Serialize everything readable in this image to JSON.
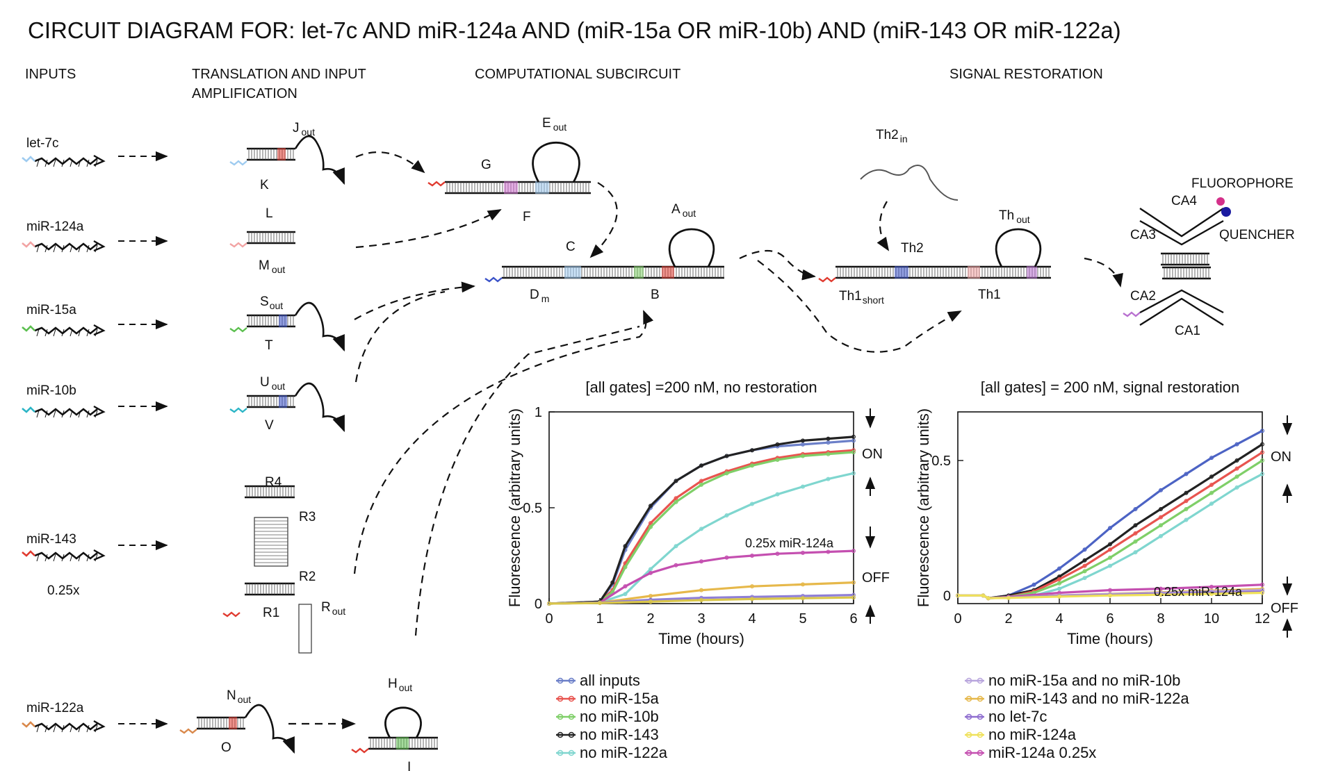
{
  "title": "CIRCUIT DIAGRAM FOR: let-7c AND miR-124a AND (miR-15a OR miR-10b) AND (miR-143 OR miR-122a)",
  "sections": {
    "inputs": "INPUTS",
    "translation_line1": "TRANSLATION AND INPUT",
    "translation_line2": "AMPLIFICATION",
    "computational": "COMPUTATIONAL SUBCIRCUIT",
    "restoration": "SIGNAL RESTORATION"
  },
  "inputs": [
    {
      "name": "let-7c",
      "color": "#9ecbf0"
    },
    {
      "name": "miR-124a",
      "color": "#f2a3a3"
    },
    {
      "name": "miR-15a",
      "color": "#5cbf4f"
    },
    {
      "name": "miR-10b",
      "color": "#2cb5c6"
    },
    {
      "name": "miR-143",
      "color": "#e03a2f"
    },
    {
      "name": "miR-122a",
      "color": "#d9884a"
    }
  ],
  "input_note": "0.25x",
  "input_note_color": "#e02020",
  "gates": {
    "J": "J",
    "J_sub": "out",
    "K": "K",
    "L": "L",
    "M": "M",
    "M_sub": "out",
    "S": "S",
    "S_sub": "out",
    "T": "T",
    "U": "U",
    "U_sub": "out",
    "V": "V",
    "R4": "R4",
    "R3": "R3",
    "R2": "R2",
    "R1": "R1",
    "R": "R",
    "R_sub": "out",
    "N": "N",
    "N_sub": "out",
    "O": "O",
    "H": "H",
    "H_sub": "out",
    "I": "I",
    "E": "E",
    "E_sub": "out",
    "G": "G",
    "F": "F",
    "C": "C",
    "A": "A",
    "A_sub": "out",
    "D": "D",
    "D_sub": "m",
    "B": "B",
    "Th2in": "Th2",
    "Th2in_sub": "in",
    "Th2": "Th2",
    "Th": "Th",
    "Th_sub": "out",
    "Th1short": "Th1",
    "Th1short_sub": "short",
    "Th1": "Th1",
    "CA4": "CA4",
    "CA3": "CA3",
    "CA2": "CA2",
    "CA1": "CA1",
    "fluorophore": "FLUOROPHORE",
    "quencher": "QUENCHER"
  },
  "colors": {
    "fluorophore": "#d4308a",
    "quencher": "#1a1aa0",
    "strand": "#111111"
  },
  "chart_data": [
    {
      "type": "line",
      "title": "[all gates] =200 nM, no restoration",
      "xlabel": "Time (hours)",
      "ylabel": "Fluorescence (arbitrary units)",
      "xlim": [
        0,
        6
      ],
      "ylim": [
        0,
        1
      ],
      "x_ticks": [
        "0",
        "1",
        "2",
        "3",
        "4",
        "5",
        "6"
      ],
      "y_ticks": [
        "0",
        "0.5",
        "1"
      ],
      "annotations": [
        "ON",
        "OFF",
        "0.25x miR-124a"
      ],
      "series": [
        {
          "name": "all inputs",
          "color": "#6b7fc8",
          "marker": "circle",
          "x": [
            0,
            1,
            1.25,
            1.5,
            2,
            2.5,
            3,
            3.5,
            4,
            4.5,
            5,
            5.5,
            6
          ],
          "y": [
            0,
            0.01,
            0.1,
            0.28,
            0.5,
            0.64,
            0.72,
            0.77,
            0.8,
            0.82,
            0.83,
            0.84,
            0.85
          ]
        },
        {
          "name": "no miR-15a",
          "color": "#e8544f",
          "marker": "square",
          "x": [
            0,
            1,
            1.25,
            1.5,
            2,
            2.5,
            3,
            3.5,
            4,
            4.5,
            5,
            5.5,
            6
          ],
          "y": [
            0,
            0.01,
            0.07,
            0.21,
            0.42,
            0.55,
            0.64,
            0.69,
            0.73,
            0.76,
            0.78,
            0.79,
            0.8
          ]
        },
        {
          "name": "no miR-10b",
          "color": "#7fcf68",
          "marker": "diamond",
          "x": [
            0,
            1,
            1.25,
            1.5,
            2,
            2.5,
            3,
            3.5,
            4,
            4.5,
            5,
            5.5,
            6
          ],
          "y": [
            0,
            0.01,
            0.06,
            0.19,
            0.4,
            0.53,
            0.62,
            0.68,
            0.72,
            0.75,
            0.77,
            0.78,
            0.79
          ]
        },
        {
          "name": "no miR-143",
          "color": "#222222",
          "marker": "triangle",
          "x": [
            0,
            1,
            1.25,
            1.5,
            2,
            2.5,
            3,
            3.5,
            4,
            4.5,
            5,
            5.5,
            6
          ],
          "y": [
            0,
            0.01,
            0.11,
            0.3,
            0.51,
            0.64,
            0.72,
            0.77,
            0.8,
            0.83,
            0.85,
            0.86,
            0.87
          ]
        },
        {
          "name": "no miR-122a",
          "color": "#7fd6cf",
          "marker": "tri-down",
          "x": [
            0,
            1,
            1.5,
            2,
            2.5,
            3,
            3.5,
            4,
            4.5,
            5,
            5.5,
            6
          ],
          "y": [
            0,
            0.005,
            0.05,
            0.18,
            0.3,
            0.39,
            0.46,
            0.52,
            0.57,
            0.61,
            0.65,
            0.68
          ]
        },
        {
          "name": "0.25x miR-124a",
          "color": "#c44fb0",
          "marker": "circle",
          "x": [
            0,
            1,
            1.5,
            2,
            2.5,
            3,
            3.5,
            4,
            4.5,
            5,
            5.5,
            6
          ],
          "y": [
            0,
            0.005,
            0.09,
            0.16,
            0.2,
            0.22,
            0.24,
            0.25,
            0.26,
            0.265,
            0.27,
            0.275
          ]
        },
        {
          "name": "no miR-15a and no miR-10b",
          "color": "#e6b84a",
          "marker": "plus",
          "x": [
            0,
            1,
            2,
            3,
            4,
            5,
            6
          ],
          "y": [
            0,
            0.005,
            0.04,
            0.07,
            0.09,
            0.1,
            0.11
          ]
        },
        {
          "name": "no miR-143 and no miR-122a",
          "color": "#8f7fd6",
          "marker": "plus",
          "x": [
            0,
            1,
            2,
            3,
            4,
            5,
            6
          ],
          "y": [
            0,
            0.005,
            0.02,
            0.03,
            0.035,
            0.04,
            0.045
          ]
        },
        {
          "name": "no let-7c",
          "color": "#d9c64a",
          "marker": "plus",
          "x": [
            0,
            1,
            2,
            3,
            4,
            5,
            6
          ],
          "y": [
            0,
            0.003,
            0.01,
            0.018,
            0.024,
            0.028,
            0.032
          ]
        }
      ]
    },
    {
      "type": "line",
      "title": "[all gates] = 200 nM, signal restoration",
      "xlabel": "Time (hours)",
      "ylabel": "Fluorescence (arbitrary units)",
      "xlim": [
        0,
        12
      ],
      "ylim": [
        -0.03,
        0.68
      ],
      "x_ticks": [
        "0",
        "2",
        "4",
        "6",
        "8",
        "10",
        "12"
      ],
      "y_ticks": [
        "0",
        "0.5"
      ],
      "annotations": [
        "ON",
        "OFF",
        "0.25x miR-124a"
      ],
      "series": [
        {
          "name": "all inputs",
          "color": "#4c63c4",
          "x": [
            0,
            1,
            1.2,
            2,
            3,
            4,
            5,
            6,
            7,
            8,
            9,
            10,
            11,
            12
          ],
          "y": [
            0,
            0,
            -0.01,
            0,
            0.04,
            0.1,
            0.17,
            0.25,
            0.32,
            0.39,
            0.45,
            0.51,
            0.56,
            0.61
          ]
        },
        {
          "name": "no miR-143",
          "color": "#222222",
          "x": [
            0,
            1,
            1.2,
            2,
            3,
            4,
            5,
            6,
            7,
            8,
            9,
            10,
            11,
            12
          ],
          "y": [
            0,
            0,
            -0.01,
            0,
            0.02,
            0.07,
            0.13,
            0.19,
            0.26,
            0.32,
            0.38,
            0.44,
            0.5,
            0.56
          ]
        },
        {
          "name": "no miR-15a",
          "color": "#e8544f",
          "x": [
            0,
            1,
            1.2,
            2,
            3,
            4,
            5,
            6,
            7,
            8,
            9,
            10,
            11,
            12
          ],
          "y": [
            0,
            0,
            -0.01,
            -0.005,
            0.015,
            0.06,
            0.11,
            0.17,
            0.23,
            0.29,
            0.35,
            0.41,
            0.47,
            0.53
          ]
        },
        {
          "name": "no miR-10b",
          "color": "#7fcf68",
          "x": [
            0,
            1,
            1.2,
            2,
            3,
            4,
            5,
            6,
            7,
            8,
            9,
            10,
            11,
            12
          ],
          "y": [
            0,
            0,
            -0.01,
            -0.005,
            0.01,
            0.045,
            0.09,
            0.14,
            0.2,
            0.26,
            0.32,
            0.38,
            0.44,
            0.5
          ]
        },
        {
          "name": "no miR-122a",
          "color": "#7fd6cf",
          "x": [
            0,
            1,
            1.2,
            2,
            3,
            4,
            5,
            6,
            7,
            8,
            9,
            10,
            11,
            12
          ],
          "y": [
            0,
            0,
            -0.01,
            -0.008,
            0.0,
            0.025,
            0.065,
            0.11,
            0.16,
            0.22,
            0.28,
            0.34,
            0.4,
            0.45
          ]
        },
        {
          "name": "miR-124a 0.25x",
          "color": "#c44fb0",
          "x": [
            0,
            1,
            1.2,
            2,
            4,
            6,
            8,
            10,
            12
          ],
          "y": [
            0,
            0,
            -0.01,
            -0.005,
            0.01,
            0.02,
            0.025,
            0.032,
            0.04
          ]
        },
        {
          "name": "no miR-143 and no miR-122a",
          "color": "#e6b84a",
          "x": [
            0,
            1,
            1.2,
            2,
            4,
            6,
            8,
            10,
            12
          ],
          "y": [
            0,
            0,
            -0.01,
            -0.008,
            0.0,
            0.006,
            0.012,
            0.018,
            0.024
          ]
        },
        {
          "name": "no miR-15a and no miR-10b",
          "color": "#b8a5dd",
          "x": [
            0,
            1,
            1.2,
            2,
            4,
            6,
            8,
            10,
            12
          ],
          "y": [
            0,
            0,
            -0.01,
            -0.008,
            0.0,
            0.005,
            0.01,
            0.015,
            0.02
          ]
        },
        {
          "name": "no let-7c",
          "color": "#8f6fd0",
          "x": [
            0,
            1,
            1.2,
            2,
            4,
            6,
            8,
            10,
            12
          ],
          "y": [
            0,
            0,
            -0.01,
            -0.008,
            -0.002,
            0.002,
            0.006,
            0.01,
            0.014
          ]
        },
        {
          "name": "no miR-124a",
          "color": "#efe15a",
          "x": [
            0,
            1,
            1.2,
            2,
            4,
            6,
            8,
            10,
            12
          ],
          "y": [
            0,
            0,
            -0.01,
            -0.009,
            -0.004,
            0.0,
            0.003,
            0.006,
            0.01
          ]
        }
      ]
    }
  ],
  "legend_left": [
    {
      "label": "all inputs",
      "color": "#6b7fc8",
      "marker": "circle"
    },
    {
      "label": "no miR-15a",
      "color": "#e8544f",
      "marker": "square"
    },
    {
      "label": "no miR-10b",
      "color": "#7fcf68",
      "marker": "diamond"
    },
    {
      "label": "no miR-143",
      "color": "#222222",
      "marker": "triangle"
    },
    {
      "label": "no miR-122a",
      "color": "#7fd6cf",
      "marker": "tri-down"
    }
  ],
  "legend_right": [
    {
      "label": "no miR-15a and no miR-10b",
      "color": "#b8a5dd",
      "marker": "tri-down"
    },
    {
      "label": "no miR-143 and no miR-122a",
      "color": "#e6b84a",
      "marker": "tri-down"
    },
    {
      "label": "no let-7c",
      "color": "#8f6fd0",
      "marker": "plus"
    },
    {
      "label": "no miR-124a",
      "color": "#efe15a",
      "marker": "plus"
    },
    {
      "label": "miR-124a 0.25x",
      "color": "#c44fb0",
      "marker": "circle"
    }
  ]
}
